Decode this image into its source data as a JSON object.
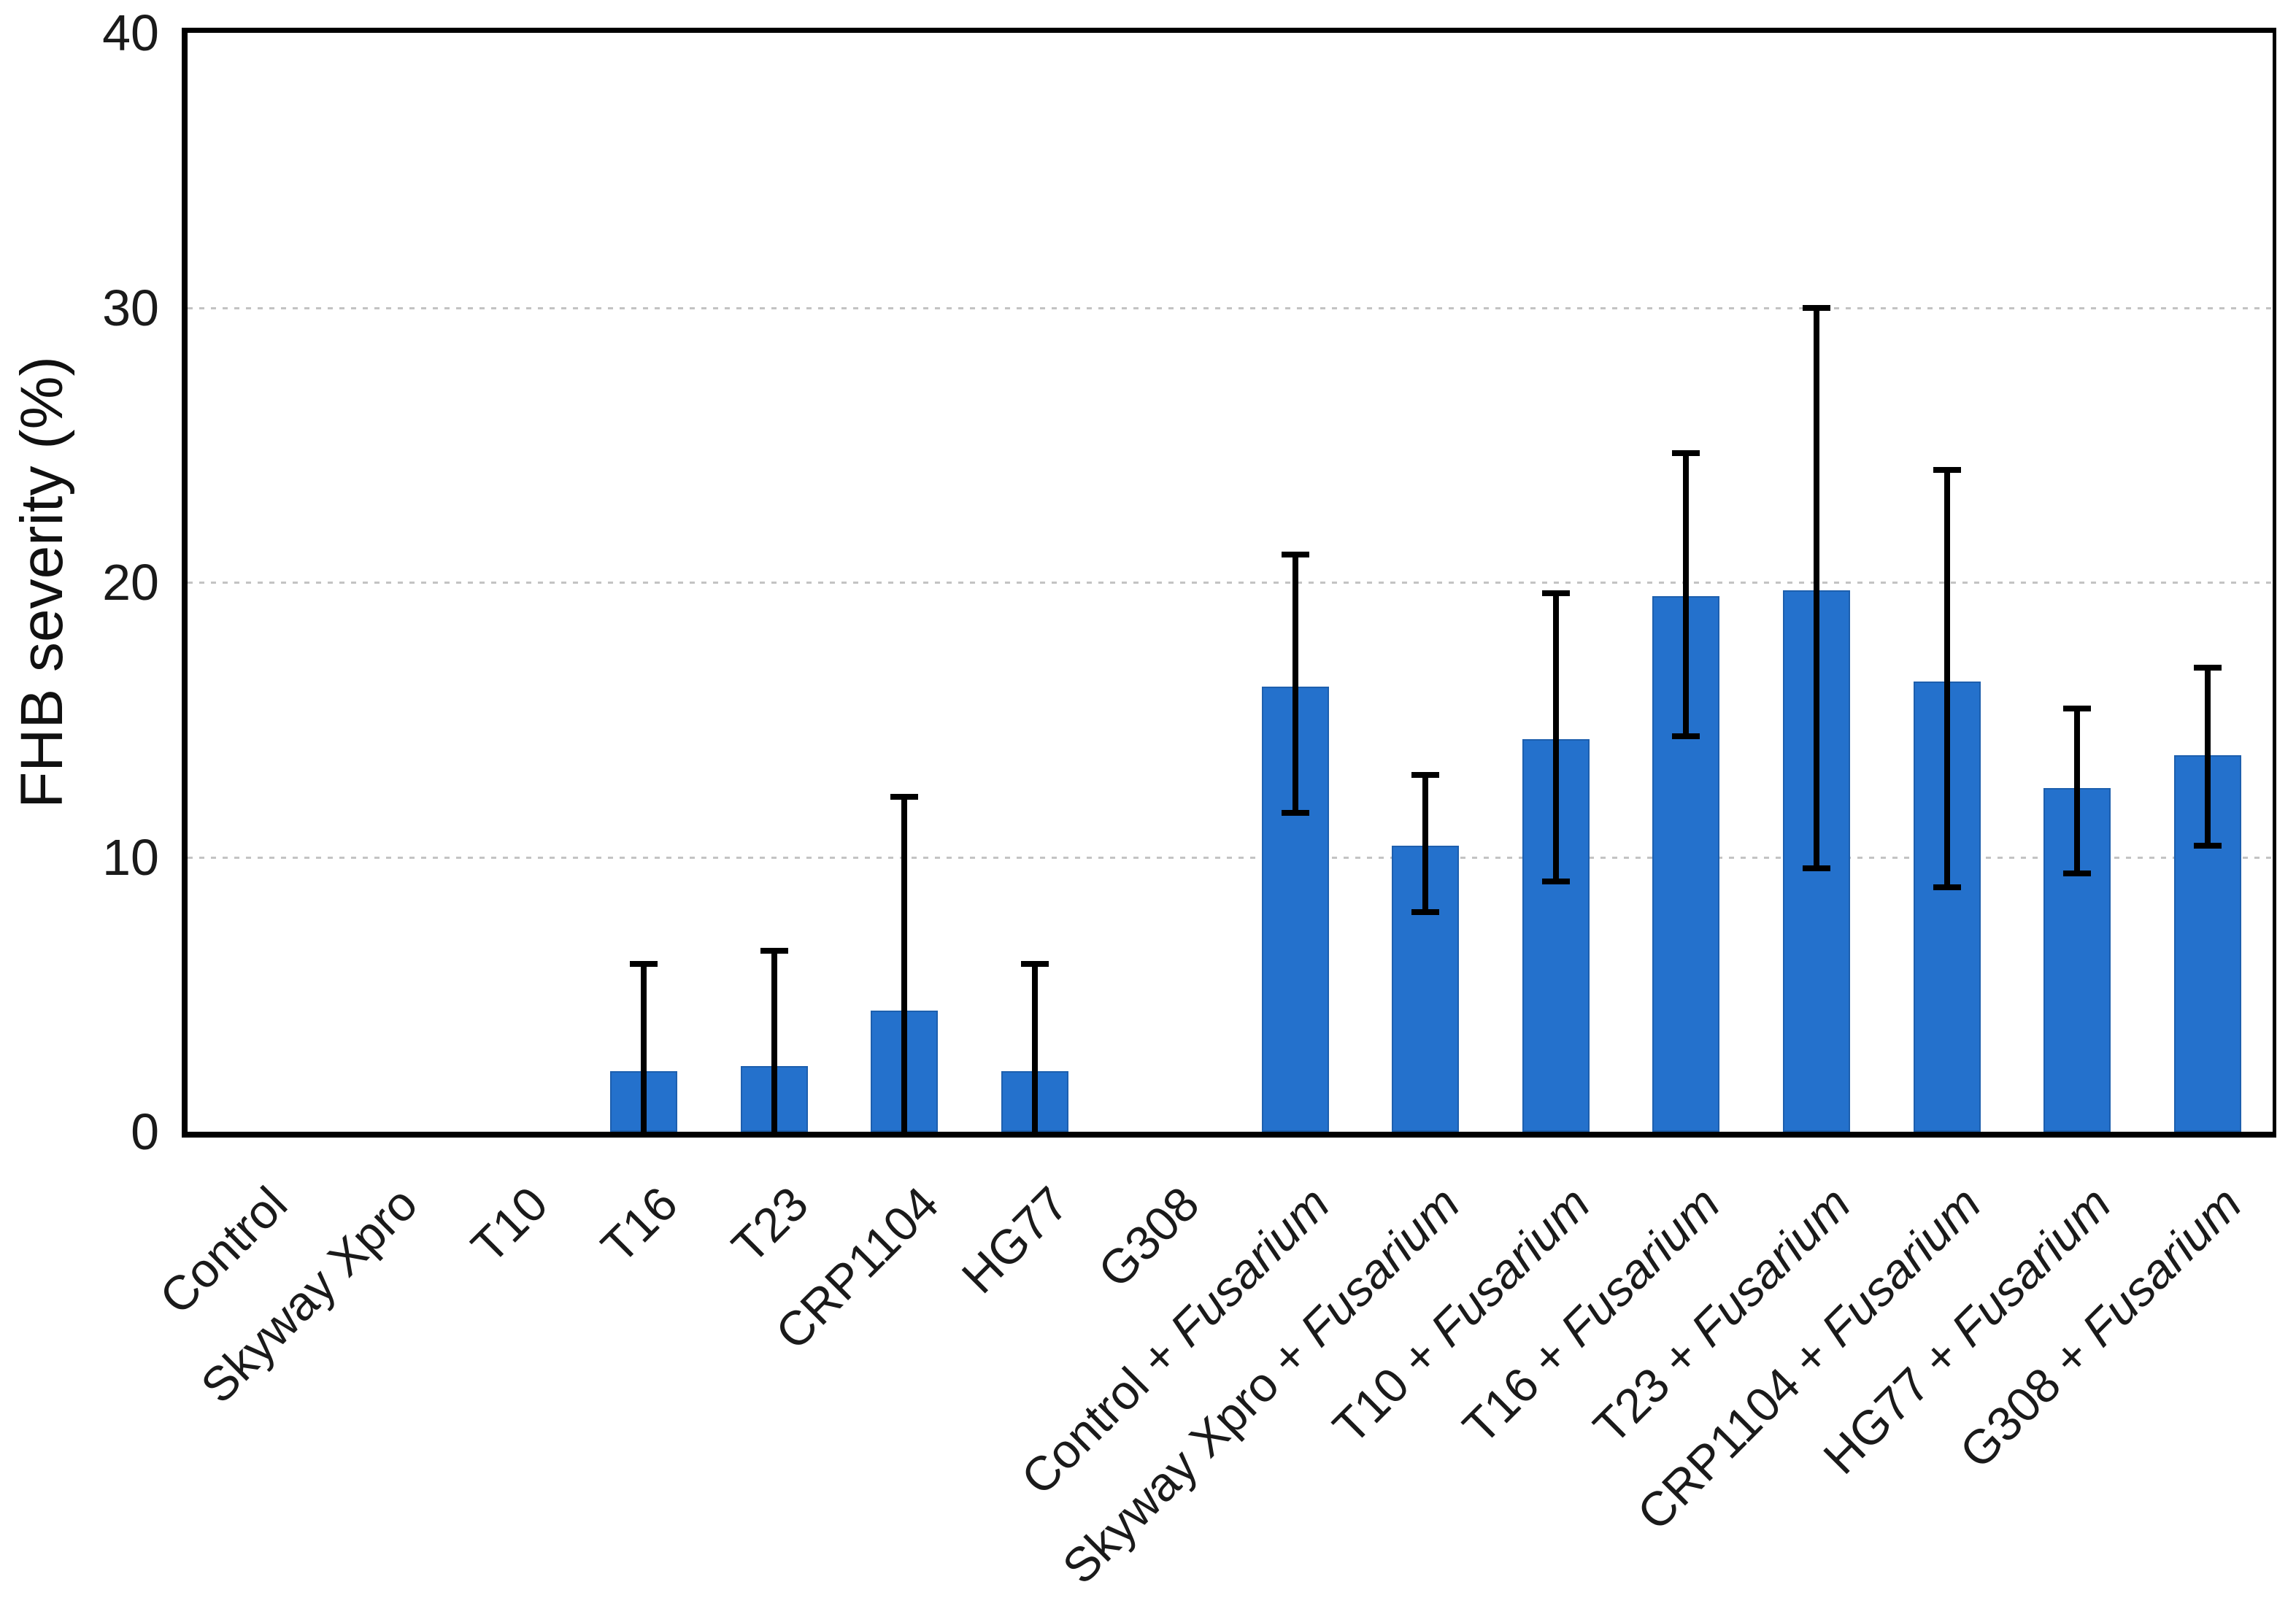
{
  "chart_data": {
    "type": "bar",
    "title": "",
    "xlabel": "",
    "ylabel": "FHB severity (%)",
    "ylim": [
      0,
      40
    ],
    "yticks": [
      0,
      10,
      20,
      30,
      40
    ],
    "ygrid_values": [
      10,
      20,
      30
    ],
    "grid_style": "horizontal dotted light-gray",
    "legend_position": "none",
    "bar_color": "#2471CC",
    "bar_edge_color": "#1D5FAE",
    "error_bar_color": "#000000",
    "label_italic_word": "Fusarium",
    "categories": [
      "Control",
      "Skyway Xpro",
      "T10",
      "T16",
      "T23",
      "CRP1104",
      "HG77",
      "G308",
      "Control + Fusarium",
      "Skyway Xpro + Fusarium",
      "T10 + Fusarium",
      "T16 + Fusarium",
      "T23 + Fusarium",
      "CRP1104 + Fusarium",
      "HG77 + Fusarium",
      "G308 + Fusarium"
    ],
    "series": [
      {
        "name": "FHB severity (%)",
        "values": [
          0,
          0,
          0,
          2.2,
          2.4,
          4.4,
          2.2,
          0,
          16.2,
          10.4,
          14.3,
          19.5,
          19.7,
          16.4,
          12.5,
          13.7
        ],
        "error_upper": [
          null,
          null,
          null,
          6.1,
          6.6,
          12.2,
          6.1,
          null,
          21.0,
          13.0,
          19.6,
          24.7,
          30.0,
          24.1,
          15.4,
          16.9
        ],
        "error_lower": [
          null,
          null,
          null,
          null,
          null,
          null,
          null,
          null,
          11.6,
          8.0,
          9.1,
          14.4,
          9.6,
          8.9,
          9.4,
          10.4
        ]
      }
    ]
  }
}
